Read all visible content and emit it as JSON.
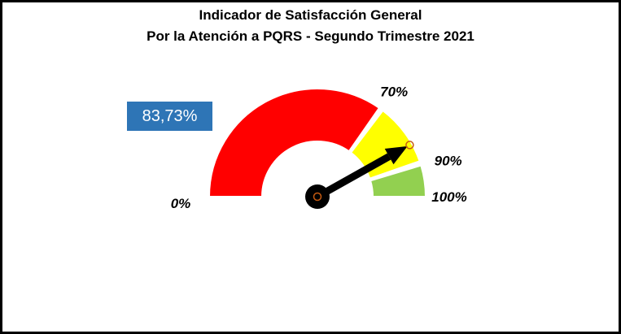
{
  "chart_data": {
    "type": "gauge",
    "title": "Indicador de Satisfacción General",
    "subtitle": "Por la Atención a PQRS - Segundo Trimestre 2021",
    "value": 83.73,
    "value_label": "83,73%",
    "range": [
      0,
      100
    ],
    "bands": [
      {
        "from": 0,
        "to": 70,
        "color": "#ff0000"
      },
      {
        "from": 70,
        "to": 90,
        "color": "#ffff00"
      },
      {
        "from": 90,
        "to": 100,
        "color": "#92d050"
      }
    ],
    "tick_labels": [
      {
        "value": 0,
        "label": "0%"
      },
      {
        "value": 70,
        "label": "70%"
      },
      {
        "value": 90,
        "label": "90%"
      },
      {
        "value": 100,
        "label": "100%"
      }
    ],
    "needle_color": "#000000",
    "hub_ring_color": "#c55a11"
  }
}
